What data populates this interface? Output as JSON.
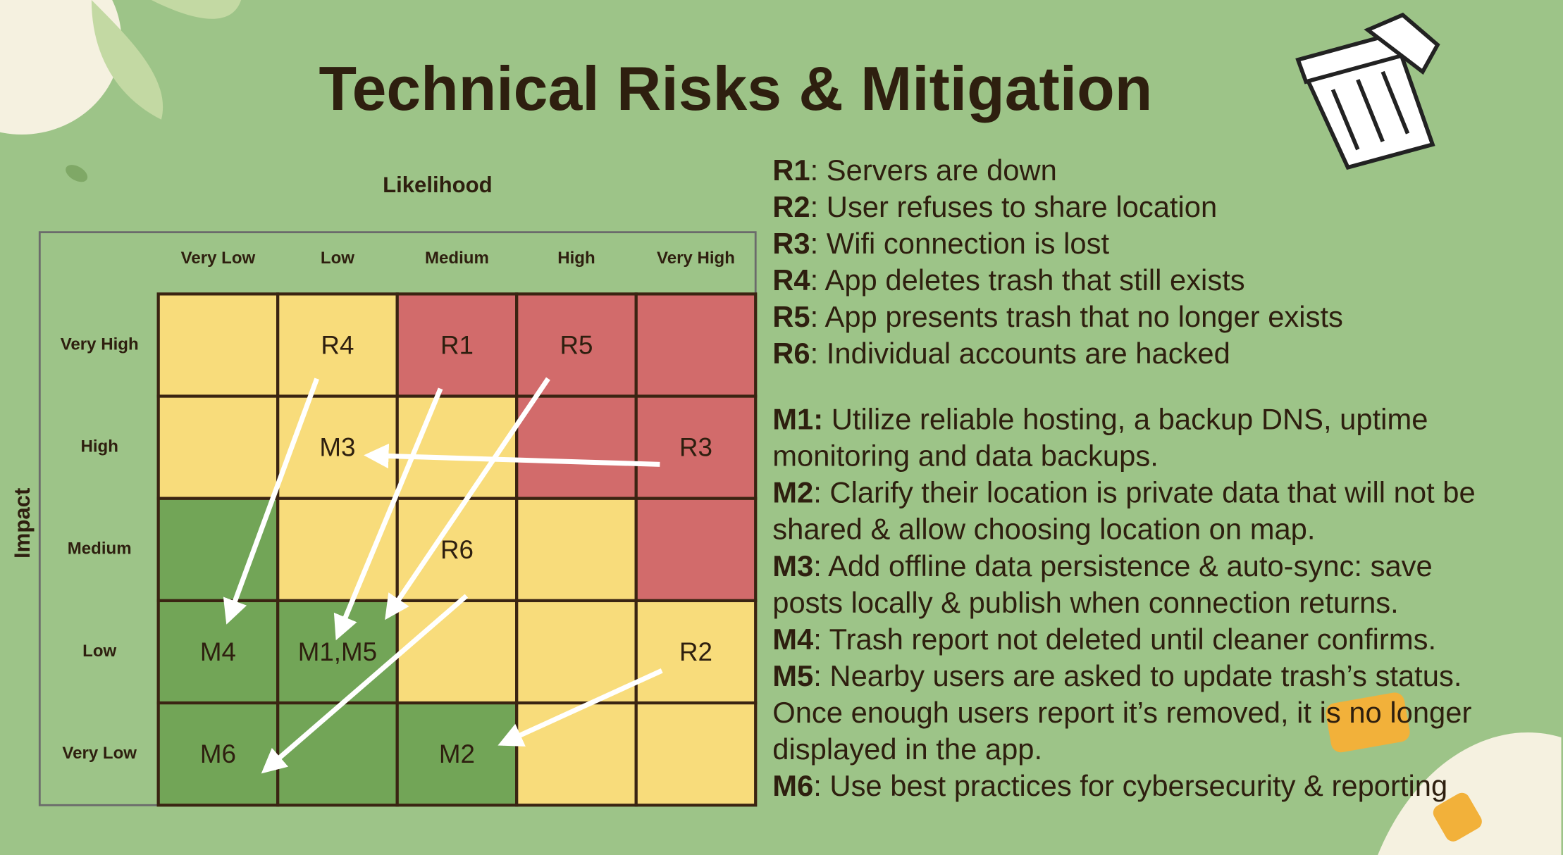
{
  "title": "Technical Risks & Mitigation",
  "matrix": {
    "x_axis_label": "Likelihood",
    "y_axis_label": "Impact",
    "columns": [
      "Very Low",
      "Low",
      "Medium",
      "High",
      "Very High"
    ],
    "rows": [
      "Very High",
      "High",
      "Medium",
      "Low",
      "Very Low"
    ],
    "fills": [
      [
        "#f8dc7b",
        "#f8dc7b",
        "#d26b6b",
        "#d26b6b",
        "#d26b6b"
      ],
      [
        "#f8dc7b",
        "#f8dc7b",
        "#f8dc7b",
        "#d26b6b",
        "#d26b6b"
      ],
      [
        "#72a557",
        "#f8dc7b",
        "#f8dc7b",
        "#f8dc7b",
        "#d26b6b"
      ],
      [
        "#72a557",
        "#72a557",
        "#f8dc7b",
        "#f8dc7b",
        "#f8dc7b"
      ],
      [
        "#72a557",
        "#72a557",
        "#72a557",
        "#f8dc7b",
        "#f8dc7b"
      ]
    ],
    "cells": [
      [
        null,
        "R4",
        "R1",
        "R5",
        null
      ],
      [
        null,
        "M3",
        null,
        null,
        "R3"
      ],
      [
        null,
        null,
        "R6",
        null,
        null
      ],
      [
        "M4",
        "M1,M5",
        null,
        null,
        "R2"
      ],
      [
        "M6",
        null,
        "M2",
        null,
        null
      ]
    ]
  },
  "risks": [
    {
      "code": "R1",
      "lines": [
        ": Servers are down"
      ]
    },
    {
      "code": "R2",
      "lines": [
        ": User refuses to share location"
      ]
    },
    {
      "code": "R3",
      "lines": [
        ": Wifi connection is lost"
      ]
    },
    {
      "code": "R4",
      "lines": [
        ": App deletes trash that still exists"
      ]
    },
    {
      "code": "R5",
      "lines": [
        ": App presents trash that no longer exists"
      ]
    },
    {
      "code": "R6",
      "lines": [
        ": Individual accounts are hacked"
      ]
    }
  ],
  "mitigations": [
    {
      "code": "M1:",
      "lines": [
        " Utilize reliable hosting, a backup DNS, uptime",
        "monitoring and data backups."
      ]
    },
    {
      "code": "M2",
      "lines": [
        ": Clarify their location is private data that will not be",
        "shared & allow choosing location on map."
      ]
    },
    {
      "code": "M3",
      "lines": [
        ": Add offline data persistence & auto-sync: save",
        "posts locally & publish when connection returns."
      ]
    },
    {
      "code": "M4",
      "lines": [
        ": Trash report not deleted until cleaner confirms."
      ]
    },
    {
      "code": "M5",
      "lines": [
        ": Nearby users are asked to update trash’s status.",
        "Once enough users report it’s removed, it is no longer",
        "displayed in the app."
      ]
    },
    {
      "code": "M6",
      "lines": [
        ": Use best practices for cybersecurity & reporting"
      ]
    }
  ]
}
